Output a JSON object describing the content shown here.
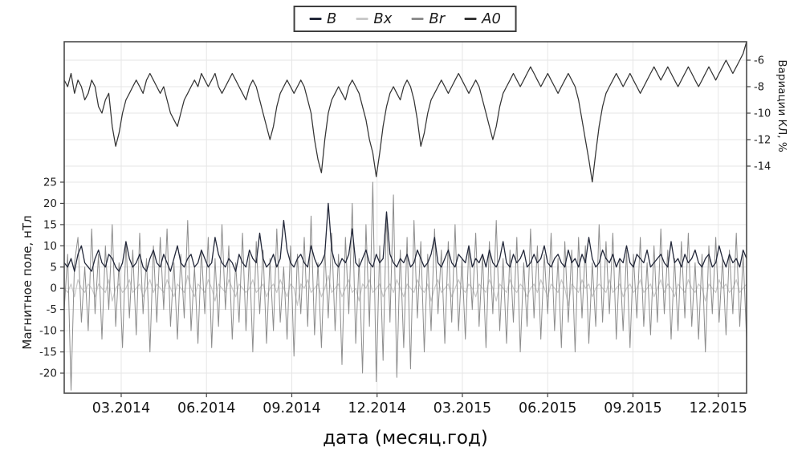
{
  "figure": {
    "kind": "scientific line chart",
    "background": "#ffffff"
  },
  "legend": {
    "position": "top-center",
    "items": [
      {
        "label": "B",
        "color": "#23283a"
      },
      {
        "label": "Bx",
        "color": "#c9c9c9"
      },
      {
        "label": "Br",
        "color": "#8d8d8d"
      },
      {
        "label": "A0",
        "color": "#343434"
      }
    ]
  },
  "axes": {
    "left": {
      "title": "Магнитное поле, нТл",
      "ticks": [
        "25",
        "20",
        "15",
        "10",
        "5",
        "0",
        "-5",
        "-10",
        "-15",
        "-20"
      ]
    },
    "right": {
      "title": "Вариации КЛ, %",
      "ticks": [
        "-6",
        "-8",
        "-10",
        "-12",
        "-14"
      ]
    },
    "x": {
      "title": "дата (месяц.год)",
      "ticks": [
        "03.2014",
        "06.2014",
        "09.2014",
        "12.2014",
        "03.2015",
        "06.2015",
        "09.2015",
        "12.2015"
      ]
    }
  },
  "chart_data": {
    "type": "line",
    "title": "",
    "xlabel": "дата (месяц.год)",
    "grid": true,
    "legend_position": "top-center",
    "x_range": [
      2014.0,
      2016.0
    ],
    "x_tick_values": [
      2014.167,
      2014.417,
      2014.667,
      2014.917,
      2015.167,
      2015.417,
      2015.667,
      2015.917
    ],
    "x_tick_labels": [
      "03.2014",
      "06.2014",
      "09.2014",
      "12.2014",
      "03.2015",
      "06.2015",
      "09.2015",
      "12.2015"
    ],
    "left_axis": {
      "label": "Магнитное поле, нТл",
      "units": "нТл",
      "tick_values": [
        25,
        20,
        15,
        10,
        5,
        0,
        -5,
        -10,
        -15,
        -20
      ],
      "range": [
        -24.7,
        25
      ]
    },
    "right_axis": {
      "label": "Вариации КЛ, %",
      "units": "%",
      "tick_values": [
        -6,
        -8,
        -10,
        -12,
        -14
      ],
      "range": [
        -15.4,
        -4.6
      ]
    },
    "series": [
      {
        "name": "Bx",
        "axis": "left",
        "color": "#c9c9c9",
        "width": 1.2,
        "values": [
          0,
          -1,
          1,
          -2,
          2,
          0,
          -1,
          1,
          0,
          -2,
          1,
          0,
          -1,
          2,
          -3,
          0,
          1,
          -1,
          0,
          2,
          -1,
          0,
          1,
          -2,
          0,
          2,
          -1,
          1,
          0,
          -1,
          2,
          0,
          -2,
          1,
          0,
          -1,
          3,
          0,
          -2,
          1,
          0,
          -1,
          2,
          0,
          -3,
          1,
          0,
          -1,
          2,
          0,
          -2,
          1,
          0,
          -1,
          0,
          2,
          -1,
          0,
          1,
          -2,
          0,
          1,
          -1,
          2,
          0,
          -2,
          1,
          0,
          -4,
          1,
          0,
          2,
          -1,
          0,
          1,
          -2,
          0,
          3,
          -1,
          0,
          1,
          -2,
          0,
          2,
          -1,
          0,
          -3,
          1,
          0,
          2,
          -1,
          0,
          1,
          -2,
          0,
          1,
          -1,
          2,
          0,
          -2,
          1,
          0,
          -1,
          2,
          0,
          -1,
          1,
          -3,
          0,
          2,
          -1,
          0,
          1,
          -2,
          0,
          2,
          0,
          -1,
          1,
          0,
          -2,
          1,
          0,
          -1,
          2,
          0,
          -3,
          1,
          0,
          -1,
          2,
          0,
          -1,
          1,
          0,
          -2,
          0,
          1,
          -1,
          2,
          0,
          -2,
          1,
          0,
          -1,
          2,
          0,
          -4,
          1,
          0,
          -1,
          2,
          0,
          1,
          -2,
          0,
          1,
          0,
          -1,
          2,
          -1,
          0,
          1,
          -2,
          0,
          1,
          -1,
          0,
          2,
          -1,
          0,
          1,
          -2,
          0,
          2,
          -1,
          1,
          0,
          -2,
          1,
          0,
          -1,
          2,
          0,
          -1,
          1,
          0,
          -3,
          1,
          0,
          -1,
          2,
          0,
          1,
          -1,
          0,
          2,
          -1,
          0,
          1
        ]
      },
      {
        "name": "Br",
        "axis": "left",
        "color": "#8d8d8d",
        "width": 1.0,
        "values": [
          -5,
          8,
          -24,
          6,
          12,
          -8,
          5,
          -10,
          14,
          -6,
          8,
          -12,
          10,
          -5,
          15,
          -9,
          6,
          -14,
          11,
          -7,
          9,
          -11,
          13,
          -6,
          7,
          -15,
          10,
          -8,
          12,
          -5,
          14,
          -9,
          6,
          -12,
          8,
          -7,
          16,
          -10,
          5,
          -13,
          9,
          -6,
          12,
          -14,
          7,
          -9,
          15,
          -5,
          10,
          -12,
          6,
          -8,
          13,
          -10,
          8,
          -15,
          11,
          -6,
          9,
          -13,
          7,
          -10,
          14,
          -8,
          5,
          -12,
          10,
          -16,
          8,
          -6,
          12,
          -9,
          17,
          -11,
          6,
          -14,
          9,
          -7,
          13,
          -10,
          8,
          -18,
          12,
          -6,
          20,
          -13,
          7,
          -20,
          15,
          -9,
          25,
          -22,
          10,
          -17,
          18,
          -8,
          22,
          -21,
          9,
          -14,
          12,
          -19,
          16,
          -7,
          11,
          -15,
          8,
          -10,
          14,
          -6,
          9,
          -13,
          11,
          -8,
          15,
          -10,
          7,
          -12,
          10,
          -5,
          13,
          -9,
          8,
          -14,
          11,
          -6,
          16,
          -10,
          7,
          -13,
          9,
          -8,
          12,
          -15,
          6,
          -9,
          14,
          -7,
          10,
          -12,
          8,
          -6,
          13,
          -10,
          7,
          -14,
          11,
          -8,
          9,
          -15,
          12,
          -7,
          10,
          -13,
          6,
          -9,
          15,
          -8,
          11,
          -6,
          13,
          -12,
          7,
          -10,
          9,
          -14,
          8,
          -7,
          12,
          -9,
          6,
          -11,
          10,
          -8,
          14,
          -6,
          9,
          -12,
          7,
          -10,
          11,
          -7,
          13,
          -9,
          6,
          -12,
          8,
          -15,
          10,
          -6,
          12,
          -8,
          7,
          -11,
          9,
          -6,
          13,
          -9,
          8,
          -12
        ]
      },
      {
        "name": "B",
        "axis": "left",
        "color": "#23283a",
        "width": 1.3,
        "values": [
          6,
          5,
          7,
          4,
          8,
          10,
          6,
          5,
          4,
          7,
          9,
          6,
          5,
          8,
          7,
          5,
          4,
          6,
          11,
          7,
          5,
          6,
          8,
          5,
          4,
          7,
          9,
          6,
          5,
          8,
          6,
          4,
          7,
          10,
          6,
          5,
          7,
          8,
          5,
          6,
          9,
          7,
          5,
          6,
          12,
          8,
          6,
          5,
          7,
          6,
          4,
          8,
          6,
          5,
          9,
          7,
          6,
          13,
          7,
          5,
          6,
          8,
          5,
          7,
          16,
          9,
          6,
          5,
          7,
          8,
          6,
          5,
          10,
          7,
          5,
          6,
          8,
          20,
          9,
          6,
          5,
          7,
          6,
          8,
          14,
          6,
          5,
          7,
          9,
          6,
          5,
          8,
          6,
          7,
          18,
          8,
          6,
          5,
          7,
          6,
          8,
          5,
          6,
          9,
          7,
          5,
          6,
          8,
          12,
          6,
          5,
          7,
          9,
          6,
          5,
          8,
          7,
          6,
          10,
          5,
          7,
          6,
          8,
          5,
          9,
          6,
          5,
          7,
          11,
          6,
          5,
          8,
          6,
          7,
          9,
          5,
          6,
          8,
          6,
          7,
          10,
          6,
          5,
          7,
          8,
          6,
          5,
          9,
          6,
          7,
          5,
          8,
          6,
          12,
          7,
          5,
          6,
          9,
          7,
          6,
          8,
          5,
          7,
          6,
          10,
          6,
          5,
          8,
          7,
          6,
          9,
          5,
          6,
          7,
          8,
          6,
          5,
          11,
          6,
          7,
          5,
          8,
          6,
          7,
          9,
          6,
          5,
          7,
          8,
          5,
          6,
          10,
          7,
          5,
          8,
          6,
          7,
          5,
          9,
          7
        ]
      },
      {
        "name": "A0",
        "axis": "right",
        "color": "#343434",
        "width": 1.25,
        "values": [
          -7.5,
          -8,
          -7,
          -8.5,
          -7.5,
          -8,
          -9,
          -8.5,
          -7.5,
          -8,
          -9.5,
          -10,
          -9,
          -8.5,
          -11,
          -12.5,
          -11.5,
          -10,
          -9,
          -8.5,
          -8,
          -7.5,
          -8,
          -8.5,
          -7.5,
          -7,
          -7.5,
          -8,
          -8.5,
          -8,
          -9,
          -10,
          -10.5,
          -11,
          -10,
          -9,
          -8.5,
          -8,
          -7.5,
          -8,
          -7,
          -7.5,
          -8,
          -7.5,
          -7,
          -8,
          -8.5,
          -8,
          -7.5,
          -7,
          -7.5,
          -8,
          -8.5,
          -9,
          -8,
          -7.5,
          -8,
          -9,
          -10,
          -11,
          -12,
          -11,
          -9.5,
          -8.5,
          -8,
          -7.5,
          -8,
          -8.5,
          -8,
          -7.5,
          -8,
          -9,
          -10,
          -12,
          -13.5,
          -14.5,
          -12,
          -10,
          -9,
          -8.5,
          -8,
          -8.5,
          -9,
          -8,
          -7.5,
          -8,
          -8.5,
          -9.5,
          -10.5,
          -12,
          -13,
          -14.8,
          -13,
          -11,
          -9.5,
          -8.5,
          -8,
          -8.5,
          -9,
          -8,
          -7.5,
          -8,
          -9,
          -10.5,
          -12.5,
          -11.5,
          -10,
          -9,
          -8.5,
          -8,
          -7.5,
          -8,
          -8.5,
          -8,
          -7.5,
          -7,
          -7.5,
          -8,
          -8.5,
          -8,
          -7.5,
          -8,
          -9,
          -10,
          -11,
          -12,
          -11,
          -9.5,
          -8.5,
          -8,
          -7.5,
          -7,
          -7.5,
          -8,
          -7.5,
          -7,
          -6.5,
          -7,
          -7.5,
          -8,
          -7.5,
          -7,
          -7.5,
          -8,
          -8.5,
          -8,
          -7.5,
          -7,
          -7.5,
          -8,
          -9,
          -10.5,
          -12,
          -13.5,
          -15.2,
          -13,
          -11,
          -9.5,
          -8.5,
          -8,
          -7.5,
          -7,
          -7.5,
          -8,
          -7.5,
          -7,
          -7.5,
          -8,
          -8.5,
          -8,
          -7.5,
          -7,
          -6.5,
          -7,
          -7.5,
          -7,
          -6.5,
          -7,
          -7.5,
          -8,
          -7.5,
          -7,
          -6.5,
          -7,
          -7.5,
          -8,
          -7.5,
          -7,
          -6.5,
          -7,
          -7.5,
          -7,
          -6.5,
          -6,
          -6.5,
          -7,
          -6.5,
          -6,
          -5.5,
          -4.6
        ]
      }
    ],
    "colors": {
      "grid": "#e6e6e6",
      "border": "#4a4a4a",
      "tick_text": "#1d1d1d"
    }
  }
}
